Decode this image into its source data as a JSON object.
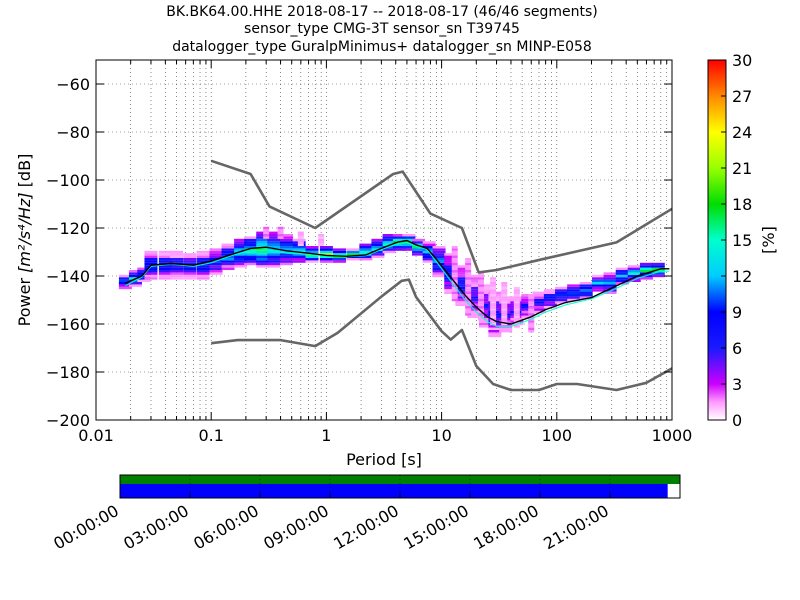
{
  "title_lines": [
    "BK.BK64.00.HHE   2018-08-17 -- 2018-08-17  (46/46 segments)",
    "sensor_type CMG-3T sensor_sn T39745",
    "datalogger_type GuralpMinimus+ datalogger_sn MINP-E058"
  ],
  "chart_data": {
    "type": "heatmap",
    "xlabel": "Period [s]",
    "ylabel_prefix": "Power ",
    "ylabel_unit": "[m²/s⁴/Hz]",
    "ylabel_suffix": " [dB]",
    "x_scale": "log",
    "xlim": [
      0.01,
      1000
    ],
    "ylim": [
      -200,
      -50
    ],
    "x_ticks": [
      0.01,
      0.1,
      1,
      10,
      100,
      1000
    ],
    "x_tick_labels": [
      "0.01",
      "0.1",
      "1",
      "10",
      "100",
      "1000"
    ],
    "y_ticks": [
      -200,
      -180,
      -160,
      -140,
      -120,
      -100,
      -80,
      -60
    ],
    "y_tick_labels": [
      "−200",
      "−180",
      "−160",
      "−140",
      "−120",
      "−100",
      "−80",
      "−60"
    ],
    "grid": "dotted",
    "colorbar": {
      "label": "[%]",
      "range": [
        0,
        30
      ],
      "ticks": [
        0,
        3,
        6,
        9,
        12,
        15,
        18,
        21,
        24,
        27,
        30
      ],
      "tick_labels": [
        "0",
        "3",
        "6",
        "9",
        "12",
        "15",
        "18",
        "21",
        "24",
        "27",
        "30"
      ],
      "colormap": "pqlx"
    },
    "noise_model_high": [
      [
        0.1,
        -92
      ],
      [
        0.22,
        -97.5
      ],
      [
        0.32,
        -111
      ],
      [
        0.8,
        -120
      ],
      [
        3.8,
        -97.5
      ],
      [
        4.6,
        -96.5
      ],
      [
        8,
        -114
      ],
      [
        15,
        -120
      ],
      [
        21,
        -138.5
      ],
      [
        30,
        -137.5
      ],
      [
        75,
        -133
      ],
      [
        330,
        -126
      ],
      [
        1000,
        -112
      ]
    ],
    "noise_model_low": [
      [
        0.1,
        -168
      ],
      [
        0.17,
        -166.7
      ],
      [
        0.4,
        -166.7
      ],
      [
        0.8,
        -169.2
      ],
      [
        1.25,
        -163.7
      ],
      [
        3,
        -148.6
      ],
      [
        4.5,
        -142
      ],
      [
        5.2,
        -141.5
      ],
      [
        6,
        -148.7
      ],
      [
        10,
        -163
      ],
      [
        12,
        -166.5
      ],
      [
        15,
        -162.5
      ],
      [
        20,
        -177.5
      ],
      [
        28,
        -185
      ],
      [
        40,
        -187.5
      ],
      [
        70,
        -187.5
      ],
      [
        100,
        -185
      ],
      [
        150,
        -185
      ],
      [
        330,
        -187.5
      ],
      [
        600,
        -184.5
      ],
      [
        1000,
        -178.5
      ]
    ],
    "mean_curve": [
      [
        0.018,
        -143
      ],
      [
        0.025,
        -140
      ],
      [
        0.03,
        -135.5
      ],
      [
        0.045,
        -134.8
      ],
      [
        0.07,
        -135.5
      ],
      [
        0.1,
        -133.8
      ],
      [
        0.15,
        -131
      ],
      [
        0.22,
        -128.5
      ],
      [
        0.3,
        -128
      ],
      [
        0.45,
        -129.5
      ],
      [
        0.7,
        -130.5
      ],
      [
        1,
        -131.4
      ],
      [
        1.5,
        -131.8
      ],
      [
        2.2,
        -131.2
      ],
      [
        3,
        -128.5
      ],
      [
        4.2,
        -125.8
      ],
      [
        5,
        -125.2
      ],
      [
        6,
        -127
      ],
      [
        7.5,
        -128.5
      ],
      [
        9,
        -133
      ],
      [
        12,
        -140.5
      ],
      [
        16,
        -148
      ],
      [
        20,
        -153
      ],
      [
        25,
        -157
      ],
      [
        30,
        -159
      ],
      [
        40,
        -160
      ],
      [
        60,
        -157
      ],
      [
        80,
        -154
      ],
      [
        120,
        -151
      ],
      [
        200,
        -149
      ],
      [
        300,
        -145
      ],
      [
        500,
        -140
      ],
      [
        800,
        -137
      ],
      [
        950,
        -137
      ]
    ],
    "mode_curve": [
      [
        0.018,
        -144
      ],
      [
        0.025,
        -140.5
      ],
      [
        0.03,
        -136
      ],
      [
        0.045,
        -135
      ],
      [
        0.07,
        -136
      ],
      [
        0.1,
        -134.5
      ],
      [
        0.15,
        -131.5
      ],
      [
        0.22,
        -129.5
      ],
      [
        0.3,
        -129
      ],
      [
        0.45,
        -130.5
      ],
      [
        0.7,
        -131
      ],
      [
        1,
        -131.5
      ],
      [
        1.5,
        -132
      ],
      [
        2.2,
        -131.5
      ],
      [
        3,
        -129
      ],
      [
        4.2,
        -126.5
      ],
      [
        5,
        -126
      ],
      [
        6,
        -127.5
      ],
      [
        7.5,
        -129
      ],
      [
        9,
        -134
      ],
      [
        12,
        -142
      ],
      [
        16,
        -150
      ],
      [
        20,
        -155
      ],
      [
        25,
        -159
      ],
      [
        30,
        -161
      ],
      [
        40,
        -161
      ],
      [
        60,
        -158
      ],
      [
        80,
        -155
      ],
      [
        120,
        -152
      ],
      [
        200,
        -149.5
      ],
      [
        300,
        -146
      ],
      [
        500,
        -141
      ],
      [
        800,
        -138
      ],
      [
        950,
        -138
      ]
    ],
    "density_band": [
      {
        "p": 0.018,
        "lo": -145,
        "hi": -140,
        "v": 12
      },
      {
        "p": 0.022,
        "lo": -144,
        "hi": -138,
        "v": 14
      },
      {
        "p": 0.026,
        "lo": -142,
        "hi": -137,
        "v": 12
      },
      {
        "p": 0.03,
        "lo": -141,
        "hi": -130,
        "v": 11
      },
      {
        "p": 0.04,
        "lo": -141,
        "hi": -130,
        "v": 10
      },
      {
        "p": 0.05,
        "lo": -141,
        "hi": -130,
        "v": 9
      },
      {
        "p": 0.065,
        "lo": -141,
        "hi": -131,
        "v": 9
      },
      {
        "p": 0.085,
        "lo": -141,
        "hi": -130,
        "v": 10
      },
      {
        "p": 0.11,
        "lo": -139,
        "hi": -129,
        "v": 10
      },
      {
        "p": 0.14,
        "lo": -137,
        "hi": -127,
        "v": 12
      },
      {
        "p": 0.18,
        "lo": -136,
        "hi": -125,
        "v": 13
      },
      {
        "p": 0.22,
        "lo": -135,
        "hi": -124,
        "v": 15
      },
      {
        "p": 0.28,
        "lo": -136,
        "hi": -122,
        "v": 16
      },
      {
        "p": 0.35,
        "lo": -136,
        "hi": -122,
        "v": 14
      },
      {
        "p": 0.45,
        "lo": -135,
        "hi": -123,
        "v": 13
      },
      {
        "p": 0.58,
        "lo": -134,
        "hi": -125,
        "v": 14
      },
      {
        "p": 0.75,
        "lo": -134,
        "hi": -128,
        "v": 17
      },
      {
        "p": 1.0,
        "lo": -134,
        "hi": -128,
        "v": 18
      },
      {
        "p": 1.3,
        "lo": -134,
        "hi": -129,
        "v": 17
      },
      {
        "p": 1.7,
        "lo": -133,
        "hi": -129,
        "v": 16
      },
      {
        "p": 2.2,
        "lo": -133,
        "hi": -127,
        "v": 15
      },
      {
        "p": 2.8,
        "lo": -132,
        "hi": -125,
        "v": 14
      },
      {
        "p": 3.5,
        "lo": -130,
        "hi": -123,
        "v": 15
      },
      {
        "p": 4.3,
        "lo": -129,
        "hi": -123,
        "v": 16
      },
      {
        "p": 5.2,
        "lo": -129,
        "hi": -123,
        "v": 17
      },
      {
        "p": 6.3,
        "lo": -131,
        "hi": -125,
        "v": 15
      },
      {
        "p": 7.8,
        "lo": -134,
        "hi": -126,
        "v": 13
      },
      {
        "p": 9.5,
        "lo": -140,
        "hi": -128,
        "v": 11
      },
      {
        "p": 12,
        "lo": -147,
        "hi": -131,
        "v": 9
      },
      {
        "p": 15,
        "lo": -152,
        "hi": -136,
        "v": 8
      },
      {
        "p": 19,
        "lo": -157,
        "hi": -140,
        "v": 7
      },
      {
        "p": 24,
        "lo": -161,
        "hi": -144,
        "v": 7
      },
      {
        "p": 29,
        "lo": -165,
        "hi": -147,
        "v": 8
      },
      {
        "p": 36,
        "lo": -163,
        "hi": -149,
        "v": 7
      },
      {
        "p": 45,
        "lo": -160,
        "hi": -149,
        "v": 7
      },
      {
        "p": 56,
        "lo": -157,
        "hi": -148,
        "v": 8
      },
      {
        "p": 70,
        "lo": -155,
        "hi": -147,
        "v": 8
      },
      {
        "p": 88,
        "lo": -153,
        "hi": -146,
        "v": 9
      },
      {
        "p": 110,
        "lo": -151,
        "hi": -145,
        "v": 10
      },
      {
        "p": 140,
        "lo": -150,
        "hi": -144,
        "v": 11
      },
      {
        "p": 180,
        "lo": -149,
        "hi": -143,
        "v": 11
      },
      {
        "p": 230,
        "lo": -146,
        "hi": -140,
        "v": 12
      },
      {
        "p": 290,
        "lo": -147,
        "hi": -139,
        "v": 11
      },
      {
        "p": 370,
        "lo": -143,
        "hi": -137,
        "v": 12
      },
      {
        "p": 470,
        "lo": -142,
        "hi": -136,
        "v": 13
      },
      {
        "p": 600,
        "lo": -141,
        "hi": -135,
        "v": 13
      },
      {
        "p": 760,
        "lo": -140,
        "hi": -135,
        "v": 14
      }
    ],
    "scatter_outliers": [
      {
        "p": 0.3,
        "lo": -124,
        "hi": -120,
        "v": 3
      },
      {
        "p": 0.4,
        "lo": -124,
        "hi": -120,
        "v": 3
      },
      {
        "p": 0.6,
        "lo": -127,
        "hi": -122,
        "v": 2
      },
      {
        "p": 0.9,
        "lo": -127,
        "hi": -123,
        "v": 2
      },
      {
        "p": 13,
        "lo": -150,
        "hi": -128,
        "v": 3
      },
      {
        "p": 17,
        "lo": -156,
        "hi": -133,
        "v": 3
      },
      {
        "p": 22,
        "lo": -158,
        "hi": -139,
        "v": 3
      },
      {
        "p": 28,
        "lo": -160,
        "hi": -141,
        "v": 2
      },
      {
        "p": 35,
        "lo": -160,
        "hi": -143,
        "v": 2
      },
      {
        "p": 45,
        "lo": -161,
        "hi": -145,
        "v": 2
      },
      {
        "p": 60,
        "lo": -163,
        "hi": -148,
        "v": 3
      }
    ]
  },
  "timeline": {
    "time_labels": [
      "00:00:00",
      "03:00:00",
      "06:00:00",
      "09:00:00",
      "12:00:00",
      "15:00:00",
      "18:00:00",
      "21:00:00"
    ],
    "data_coverage_end": 0.978,
    "psd_coverage_end": 1.0,
    "colors": {
      "data": "#0000ff",
      "psd": "#008000",
      "frame": "#000000"
    }
  }
}
